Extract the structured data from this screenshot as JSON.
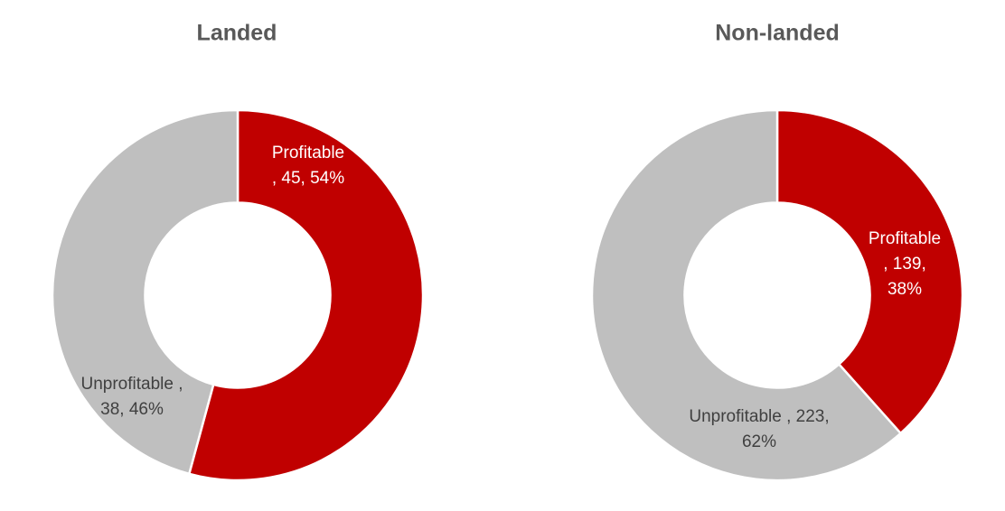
{
  "styles": {
    "background_color": "#FFFFFF",
    "title_color": "#595959",
    "slice_separator_color": "#FFFFFF",
    "accent_red": "#C00000",
    "neutral_gray": "#BFBFBF",
    "label_dark_text": "#404040",
    "label_light_text": "#FFFFFF"
  },
  "chart_data": [
    {
      "type": "pie",
      "subtype": "donut",
      "title": "Landed",
      "categories": [
        "Profitable",
        "Unprofitable"
      ],
      "values": [
        45,
        38
      ],
      "percentages": [
        54,
        46
      ],
      "colors": [
        "#C00000",
        "#BFBFBF"
      ],
      "start_angle_deg": 0,
      "direction": "clockwise",
      "hole_ratio": 0.5,
      "legend": "none",
      "data_labels": [
        {
          "text": "Profitable , 45, 54%",
          "lines": [
            "Profitable",
            ", 45, 54%"
          ],
          "color": "#FFFFFF"
        },
        {
          "text": "Unprofitable , 38, 46%",
          "lines": [
            "Unprofitable ,",
            "38, 46%"
          ],
          "color": "#404040"
        }
      ]
    },
    {
      "type": "pie",
      "subtype": "donut",
      "title": "Non-landed",
      "categories": [
        "Profitable",
        "Unprofitable"
      ],
      "values": [
        139,
        223
      ],
      "percentages": [
        38,
        62
      ],
      "colors": [
        "#C00000",
        "#BFBFBF"
      ],
      "start_angle_deg": 0,
      "direction": "clockwise",
      "hole_ratio": 0.5,
      "legend": "none",
      "data_labels": [
        {
          "text": "Profitable , 139, 38%",
          "lines": [
            "Profitable",
            ", 139,",
            "38%"
          ],
          "color": "#FFFFFF"
        },
        {
          "text": "Unprofitable , 223, 62%",
          "lines": [
            "Unprofitable , 223,",
            "62%"
          ],
          "color": "#404040"
        }
      ]
    }
  ]
}
